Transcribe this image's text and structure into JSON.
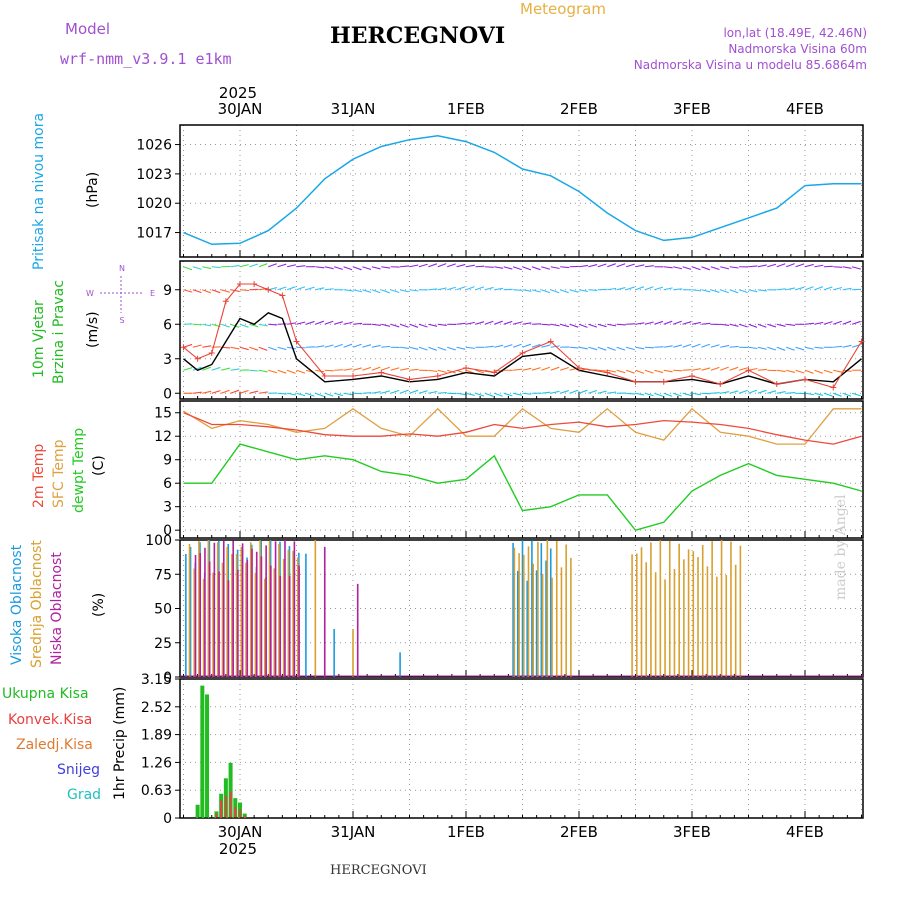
{
  "header": {
    "model_label": "Model",
    "model_name": "wrf-nmm_v3.9.1 e1km",
    "product": "Meteogram",
    "station": "HERCEGNOVI",
    "coords": "lon,lat (18.49E, 42.46N)",
    "altitude": "Nadmorska Visina 60m",
    "model_altitude": "Nadmorska Visina u modelu 85.6864m",
    "footer_station": "HERCEGNOVI",
    "credit": "made by Angel"
  },
  "colors": {
    "pressure": "#1aa7e8",
    "wind_speed": "#000000",
    "gust": "#e8443a",
    "temp2m": "#ee4a3a",
    "sfc": "#e0a040",
    "dewpt": "#22cc22",
    "cloud_high": "#1a9be0",
    "cloud_mid": "#d8a030",
    "cloud_low": "#b020a0",
    "precip_total": "#22bb22",
    "precip_conv": "#e84040",
    "axis_label_pressure": "#1aa7e8",
    "label_purple": "#a050d0",
    "label_orange": "#e07a30",
    "label_blue": "#4040e0",
    "label_cyan": "#20c0c0"
  },
  "time_axis": {
    "year": "2025",
    "days": [
      "30JAN",
      "31JAN",
      "1FEB",
      "2FEB",
      "3FEB",
      "4FEB"
    ]
  },
  "panels": {
    "pressure": {
      "ylabel_1": "Pritisak na nivou mora",
      "unit": "(hPa)"
    },
    "wind": {
      "ylabel_1": "10m Vjetar",
      "ylabel_2": "Brzina i Pravac",
      "unit": "(m/s)",
      "compass": [
        "N",
        "W",
        "E",
        "S"
      ]
    },
    "temp": {
      "ylabel_1": "2m Temp",
      "ylabel_2": "SFC Temp",
      "ylabel_3": "dewpt Temp",
      "unit": "(C)"
    },
    "cloud": {
      "ylabel_1": "Visoka Oblacnost",
      "ylabel_2": "Srednja Oblacnost",
      "ylabel_3": "Niska Oblacnost",
      "unit": "(%)"
    },
    "precip": {
      "ylabel": "1hr Precip (mm)",
      "legend": [
        "Ukupna Kisa",
        "Konvek.Kisa",
        "Zaledj.Kisa",
        "Snijeg",
        "Grad"
      ]
    }
  },
  "chart_data": [
    {
      "type": "line",
      "id": "pressure",
      "ylabel": "(hPa)",
      "ylim": [
        1014.5,
        1028
      ],
      "yticks": [
        1017,
        1020,
        1023,
        1026
      ],
      "x_hours": [
        0,
        6,
        12,
        18,
        24,
        30,
        36,
        42,
        48,
        54,
        60,
        66,
        72,
        78,
        84,
        90,
        96,
        102,
        108,
        114,
        120,
        126,
        132,
        138,
        144
      ],
      "series": [
        {
          "values": [
            1017.0,
            1015.8,
            1015.9,
            1017.2,
            1019.5,
            1022.5,
            1024.5,
            1025.8,
            1026.5,
            1026.9,
            1026.3,
            1025.2,
            1023.5,
            1022.8,
            1021.2,
            1019.0,
            1017.2,
            1016.2,
            1016.5,
            1017.5,
            1018.5,
            1019.5,
            1021.8,
            1022.0,
            1022.0
          ]
        }
      ]
    },
    {
      "type": "line",
      "id": "wind",
      "ylabel": "(m/s)",
      "ylim": [
        -0.5,
        11.5
      ],
      "yticks": [
        0,
        3,
        6,
        9
      ],
      "x_hours": [
        0,
        3,
        6,
        9,
        12,
        15,
        18,
        21,
        24,
        30,
        36,
        42,
        48,
        54,
        60,
        66,
        72,
        78,
        84,
        90,
        96,
        102,
        108,
        114,
        120,
        126,
        132,
        138,
        144
      ],
      "series": [
        {
          "name": "wind speed",
          "values": [
            3.0,
            2.0,
            2.5,
            4.5,
            6.5,
            6.0,
            7.0,
            6.5,
            3.0,
            1.0,
            1.2,
            1.5,
            1.0,
            1.2,
            1.8,
            1.5,
            3.2,
            3.5,
            2.0,
            1.5,
            1.0,
            1.0,
            1.2,
            0.8,
            1.5,
            0.8,
            1.2,
            1.0,
            3.0
          ]
        },
        {
          "name": "gust",
          "values": [
            4.0,
            3.0,
            3.5,
            8.0,
            9.5,
            9.5,
            9.0,
            8.5,
            4.5,
            1.5,
            1.5,
            1.8,
            1.2,
            1.5,
            2.2,
            1.8,
            3.5,
            4.5,
            2.2,
            1.8,
            1.0,
            1.0,
            1.5,
            0.8,
            2.0,
            0.8,
            1.2,
            0.5,
            4.5
          ]
        }
      ],
      "barb_rows": [
        0,
        2,
        4,
        6,
        9,
        11
      ]
    },
    {
      "type": "line",
      "id": "temp",
      "ylabel": "(C)",
      "ylim": [
        -1,
        16.5
      ],
      "yticks": [
        0,
        3,
        6,
        9,
        12,
        15
      ],
      "x_hours": [
        0,
        6,
        12,
        18,
        24,
        30,
        36,
        42,
        48,
        54,
        60,
        66,
        72,
        78,
        84,
        90,
        96,
        102,
        108,
        114,
        120,
        126,
        132,
        138,
        144
      ],
      "series": [
        {
          "name": "2m Temp",
          "values": [
            15.0,
            13.5,
            13.5,
            13.2,
            12.8,
            12.2,
            12.0,
            12.0,
            12.3,
            12.0,
            12.5,
            13.5,
            13.0,
            13.5,
            13.8,
            13.2,
            13.5,
            14.0,
            13.8,
            13.5,
            13.0,
            12.2,
            11.5,
            11.0,
            12.0
          ]
        },
        {
          "name": "SFC Temp",
          "values": [
            15.2,
            13.0,
            14.0,
            13.5,
            12.5,
            13.0,
            15.5,
            13.0,
            12.0,
            15.5,
            12.0,
            12.0,
            15.5,
            13.0,
            12.5,
            15.5,
            12.5,
            11.5,
            15.5,
            12.5,
            12.0,
            11.0,
            11.0,
            15.5,
            15.5
          ]
        },
        {
          "name": "dewpt Temp",
          "values": [
            6.0,
            6.0,
            11.0,
            10.0,
            9.0,
            9.5,
            9.0,
            7.5,
            7.0,
            6.0,
            6.5,
            9.5,
            2.5,
            3.0,
            4.5,
            4.5,
            0.0,
            1.0,
            5.0,
            7.0,
            8.5,
            7.0,
            6.5,
            6.0,
            5.0
          ]
        }
      ]
    },
    {
      "type": "bar",
      "id": "cloud",
      "ylabel": "(%)",
      "ylim": [
        0,
        100
      ],
      "yticks": [
        0,
        25,
        50,
        75,
        100
      ],
      "segments": [
        {
          "name": "Visoka Oblacnost",
          "ranges": [
            [
              0.5,
              24.5,
              100
            ],
            [
              70,
              78,
              100
            ]
          ]
        },
        {
          "name": "Srednja Oblacnost",
          "ranges": [
            [
              1,
              24,
              100
            ],
            [
              70,
              82,
              100
            ],
            [
              95,
              118,
              100
            ]
          ]
        },
        {
          "name": "Niska Oblacnost",
          "ranges": [
            [
              2,
              24,
              100
            ]
          ]
        }
      ],
      "scattered": [
        [
          26,
          90
        ],
        [
          28,
          100
        ],
        [
          30,
          95
        ],
        [
          32,
          35
        ],
        [
          36,
          35
        ],
        [
          37,
          68
        ],
        [
          46,
          18
        ]
      ]
    },
    {
      "type": "bar",
      "id": "precip",
      "ylabel": "1hr Precip (mm)",
      "ylim": [
        0,
        3.15
      ],
      "yticks": [
        0,
        0.63,
        1.26,
        1.89,
        2.52,
        3.15
      ],
      "x_hours": [
        3,
        4,
        5,
        7,
        8,
        9,
        10,
        11,
        12,
        13
      ],
      "series": [
        {
          "name": "Ukupna Kisa",
          "values": [
            0.3,
            3.0,
            2.8,
            0.15,
            0.55,
            0.9,
            1.25,
            0.45,
            0.35,
            0.1
          ]
        },
        {
          "name": "Konvek.Kisa",
          "values": [
            0.0,
            0.0,
            0.0,
            0.1,
            0.4,
            0.5,
            0.6,
            0.25,
            0.2,
            0.05
          ]
        }
      ]
    }
  ]
}
